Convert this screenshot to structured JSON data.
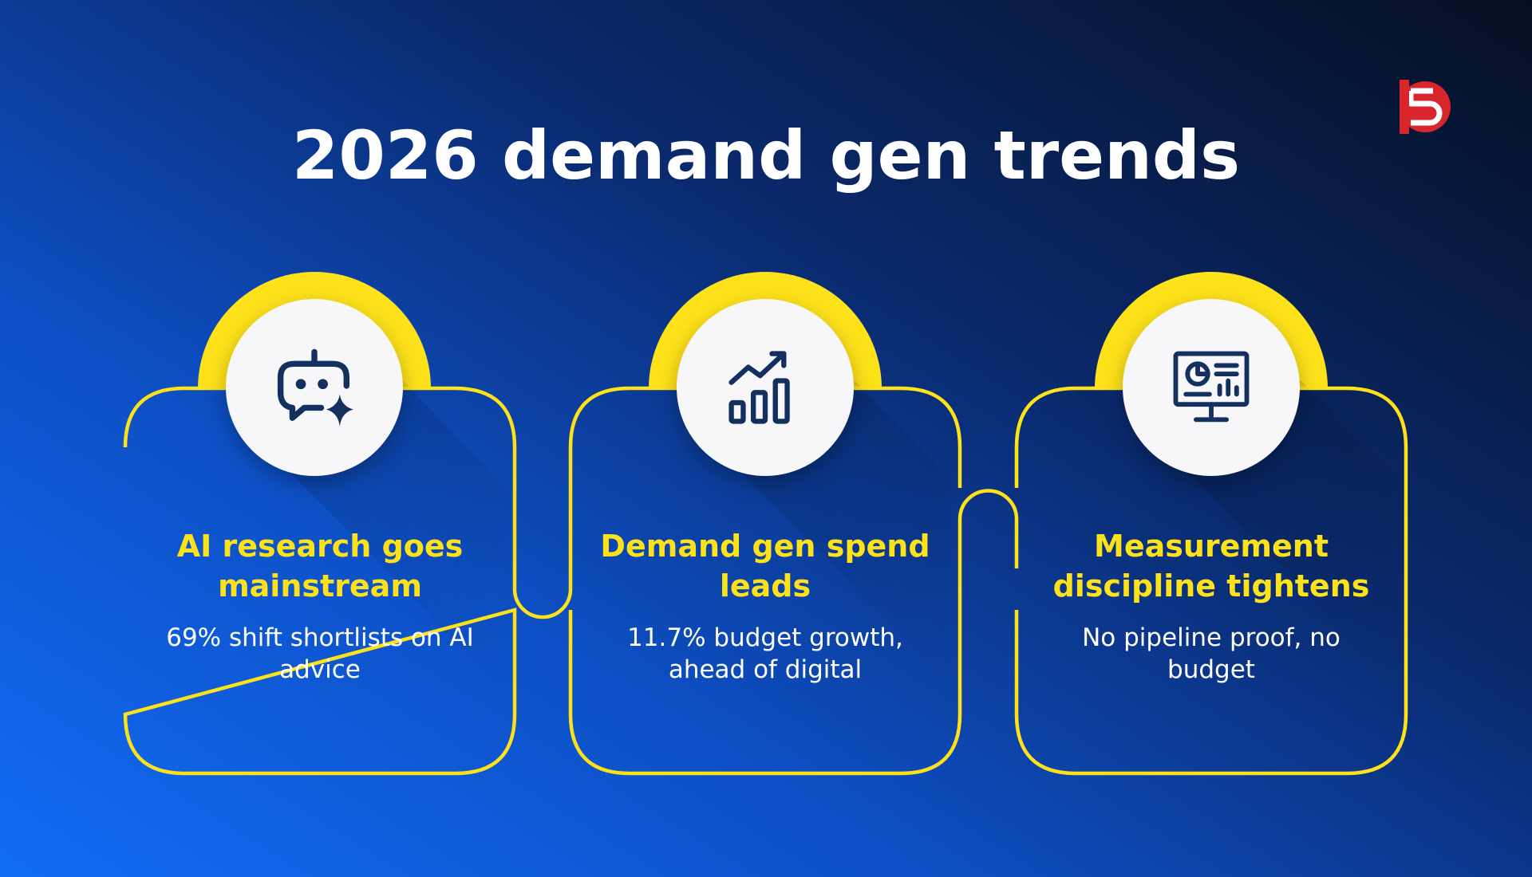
{
  "header": {
    "title": "2026 demand gen trends",
    "logo_icon": "brand-logo-icon"
  },
  "colors": {
    "accent_yellow": "#fde21a",
    "icon_navy": "#14305f",
    "circle_fill": "#f7f7fa",
    "logo_red": "#d8262c"
  },
  "cards": [
    {
      "icon": "ai-bot-sparkle-icon",
      "title": "AI research goes mainstream",
      "description": "69% shift shortlists on AI advice"
    },
    {
      "icon": "growth-bar-chart-icon",
      "title": "Demand gen spend leads",
      "description": "11.7% budget growth, ahead of digital"
    },
    {
      "icon": "analytics-monitor-icon",
      "title": "Measurement discipline tightens",
      "description": "No pipeline proof, no budget"
    }
  ]
}
